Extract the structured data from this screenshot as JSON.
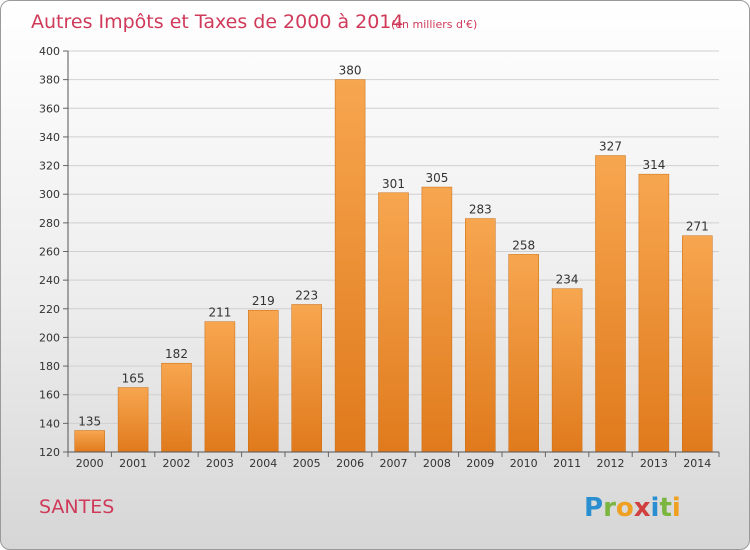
{
  "chart_data": {
    "type": "bar",
    "title": "Autres Impôts et Taxes de 2000 à 2014",
    "subtitle": "(en milliers d'€)",
    "categories": [
      "2000",
      "2001",
      "2002",
      "2003",
      "2004",
      "2005",
      "2006",
      "2007",
      "2008",
      "2009",
      "2010",
      "2011",
      "2012",
      "2013",
      "2014"
    ],
    "values": [
      135,
      165,
      182,
      211,
      219,
      223,
      380,
      301,
      305,
      283,
      258,
      234,
      327,
      314,
      271
    ],
    "ylim": [
      120,
      400
    ],
    "yticks": [
      120,
      140,
      160,
      180,
      200,
      220,
      240,
      260,
      280,
      300,
      320,
      340,
      360,
      380,
      400
    ],
    "grid": true,
    "legend": "none",
    "colors": {
      "bar_light": "#f7a650",
      "bar_dark": "#e07a1c",
      "bar_edge": "#c86a10"
    }
  },
  "place_name": "SANTES",
  "logo": {
    "letters": [
      "P",
      "r",
      "o",
      "x",
      "i",
      "t",
      "i"
    ],
    "colors": [
      "#2a8fd0",
      "#7ab640",
      "#f0a020",
      "#d04040",
      "#2a8fd0",
      "#7ab640",
      "#f0a020"
    ]
  }
}
